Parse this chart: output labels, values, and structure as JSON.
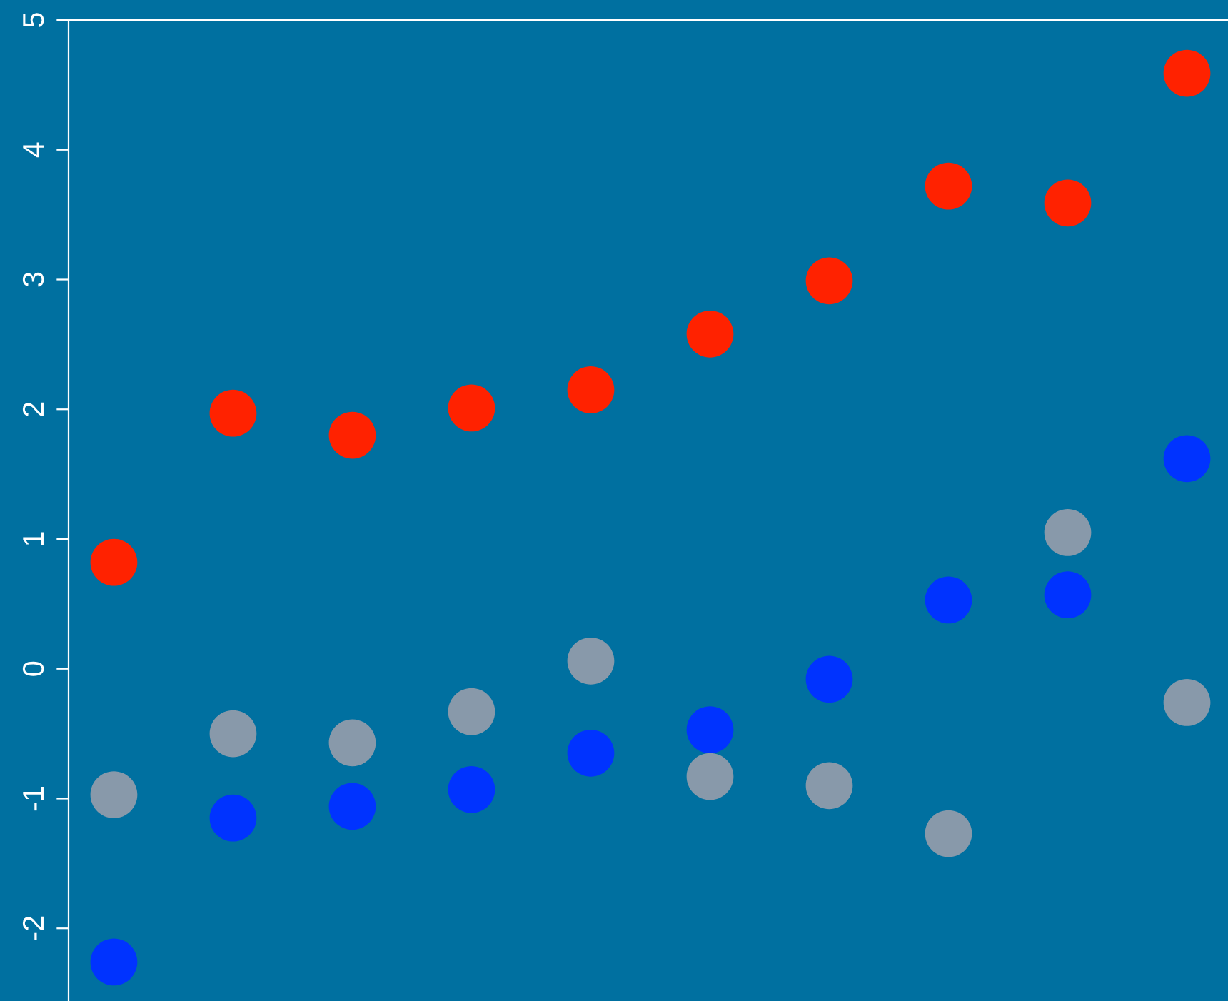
{
  "chart_data": {
    "type": "scatter",
    "categories": [
      null,
      null,
      null,
      null,
      null,
      null,
      null,
      null,
      null,
      null
    ],
    "series": [
      {
        "color": "#ff2200",
        "values": [
          0.82,
          1.97,
          1.8,
          2.01,
          2.15,
          2.58,
          2.99,
          3.72,
          3.59,
          4.59
        ]
      },
      {
        "color": "#8899aa",
        "values": [
          -0.97,
          -0.5,
          -0.57,
          -0.33,
          0.06,
          -0.83,
          -0.9,
          -1.27,
          1.05,
          -0.26
        ]
      },
      {
        "color": "#0033ff",
        "values": [
          -2.26,
          -1.15,
          -1.06,
          -0.93,
          -0.65,
          -0.47,
          -0.08,
          0.53,
          0.57,
          1.62
        ]
      }
    ],
    "ylim": [
      -2.56,
      5
    ],
    "yticks": [
      -2,
      -1,
      0,
      1,
      2,
      3,
      4,
      5
    ],
    "grid": false,
    "legend": false,
    "marker": "circle",
    "tick_labels": "y"
  }
}
